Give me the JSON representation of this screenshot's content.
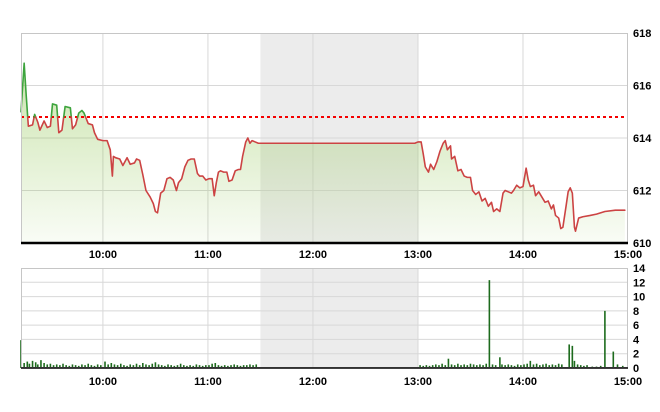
{
  "panel": {
    "background": "#ffffff",
    "description": "Intraday stock index price and volume chart"
  },
  "chart_data": [
    {
      "id": "price",
      "type": "line",
      "title": "",
      "x_axis": {
        "labels": [
          "10:00",
          "11:00",
          "12:00",
          "13:00",
          "14:00",
          "15:00"
        ],
        "hours": [
          10,
          11,
          12,
          13,
          14,
          15
        ],
        "range_hours": [
          9.22,
          15.0
        ],
        "grid": true
      },
      "y_axis": {
        "side": "right",
        "ticks": [
          618,
          616,
          614,
          612,
          610
        ],
        "range": [
          610,
          618
        ],
        "grid": true
      },
      "reference_value": 614.8,
      "session_break_hours": [
        11.5,
        13.0
      ],
      "colors": {
        "up_line": "#3da43d",
        "down_line": "#cc4343",
        "reference_line": "#f40000",
        "fill_base": "#8bc34a",
        "grid": "#d8d8d8",
        "band": "#ececec",
        "border": "#c6c6c6",
        "axis_line": "#000000"
      },
      "points": [
        [
          9.22,
          615.0
        ],
        [
          9.25,
          616.85
        ],
        [
          9.27,
          615.6
        ],
        [
          9.29,
          614.45
        ],
        [
          9.33,
          614.5
        ],
        [
          9.35,
          614.9
        ],
        [
          9.38,
          614.6
        ],
        [
          9.4,
          614.3
        ],
        [
          9.44,
          614.65
        ],
        [
          9.47,
          614.4
        ],
        [
          9.5,
          614.45
        ],
        [
          9.52,
          615.3
        ],
        [
          9.56,
          615.25
        ],
        [
          9.58,
          614.2
        ],
        [
          9.61,
          614.3
        ],
        [
          9.64,
          615.2
        ],
        [
          9.69,
          615.15
        ],
        [
          9.71,
          614.35
        ],
        [
          9.74,
          614.5
        ],
        [
          9.77,
          614.95
        ],
        [
          9.8,
          615.05
        ],
        [
          9.82,
          614.95
        ],
        [
          9.86,
          614.55
        ],
        [
          9.9,
          614.5
        ],
        [
          9.92,
          614.2
        ],
        [
          9.95,
          613.95
        ],
        [
          10.0,
          613.9
        ],
        [
          10.04,
          613.9
        ],
        [
          10.07,
          613.55
        ],
        [
          10.09,
          612.55
        ],
        [
          10.1,
          613.3
        ],
        [
          10.12,
          613.25
        ],
        [
          10.16,
          613.2
        ],
        [
          10.19,
          612.95
        ],
        [
          10.23,
          613.25
        ],
        [
          10.26,
          613.0
        ],
        [
          10.3,
          613.05
        ],
        [
          10.32,
          613.2
        ],
        [
          10.35,
          613.15
        ],
        [
          10.38,
          612.6
        ],
        [
          10.41,
          612.0
        ],
        [
          10.45,
          611.75
        ],
        [
          10.48,
          611.5
        ],
        [
          10.5,
          611.2
        ],
        [
          10.52,
          611.15
        ],
        [
          10.55,
          611.9
        ],
        [
          10.58,
          612.0
        ],
        [
          10.61,
          612.45
        ],
        [
          10.64,
          612.5
        ],
        [
          10.67,
          612.4
        ],
        [
          10.7,
          612.0
        ],
        [
          10.72,
          612.3
        ],
        [
          10.75,
          612.45
        ],
        [
          10.78,
          612.9
        ],
        [
          10.81,
          613.15
        ],
        [
          10.84,
          613.2
        ],
        [
          10.87,
          613.2
        ],
        [
          10.9,
          612.65
        ],
        [
          10.92,
          612.55
        ],
        [
          10.95,
          612.55
        ],
        [
          10.98,
          612.4
        ],
        [
          11.01,
          612.45
        ],
        [
          11.04,
          612.45
        ],
        [
          11.06,
          611.8
        ],
        [
          11.08,
          612.3
        ],
        [
          11.1,
          612.7
        ],
        [
          11.12,
          612.75
        ],
        [
          11.15,
          612.7
        ],
        [
          11.18,
          612.7
        ],
        [
          11.2,
          612.35
        ],
        [
          11.23,
          612.4
        ],
        [
          11.26,
          612.75
        ],
        [
          11.29,
          612.8
        ],
        [
          11.31,
          612.8
        ],
        [
          11.33,
          613.3
        ],
        [
          11.36,
          613.85
        ],
        [
          11.38,
          614.0
        ],
        [
          11.4,
          613.8
        ],
        [
          11.42,
          613.9
        ],
        [
          11.45,
          613.85
        ],
        [
          11.48,
          613.8
        ],
        [
          12.97,
          613.8
        ],
        [
          13.0,
          613.85
        ],
        [
          13.03,
          613.85
        ],
        [
          13.05,
          613.4
        ],
        [
          13.07,
          612.9
        ],
        [
          13.1,
          612.7
        ],
        [
          13.12,
          613.0
        ],
        [
          13.15,
          612.8
        ],
        [
          13.18,
          613.1
        ],
        [
          13.21,
          613.5
        ],
        [
          13.24,
          613.8
        ],
        [
          13.26,
          613.9
        ],
        [
          13.28,
          613.55
        ],
        [
          13.31,
          613.7
        ],
        [
          13.32,
          613.2
        ],
        [
          13.35,
          613.3
        ],
        [
          13.38,
          612.75
        ],
        [
          13.41,
          612.8
        ],
        [
          13.44,
          612.55
        ],
        [
          13.47,
          612.5
        ],
        [
          13.5,
          612.5
        ],
        [
          13.52,
          612.0
        ],
        [
          13.55,
          611.85
        ],
        [
          13.58,
          611.95
        ],
        [
          13.61,
          611.6
        ],
        [
          13.64,
          611.7
        ],
        [
          13.67,
          611.4
        ],
        [
          13.7,
          611.55
        ],
        [
          13.72,
          611.2
        ],
        [
          13.75,
          611.3
        ],
        [
          13.78,
          611.2
        ],
        [
          13.81,
          611.9
        ],
        [
          13.83,
          612.0
        ],
        [
          13.86,
          611.95
        ],
        [
          13.89,
          611.9
        ],
        [
          13.91,
          612.0
        ],
        [
          13.94,
          612.2
        ],
        [
          13.97,
          612.1
        ],
        [
          14.0,
          612.15
        ],
        [
          14.03,
          612.85
        ],
        [
          14.05,
          612.4
        ],
        [
          14.07,
          612.15
        ],
        [
          14.1,
          612.2
        ],
        [
          14.12,
          611.8
        ],
        [
          14.15,
          611.95
        ],
        [
          14.18,
          611.75
        ],
        [
          14.21,
          611.55
        ],
        [
          14.24,
          611.6
        ],
        [
          14.27,
          611.3
        ],
        [
          14.29,
          611.45
        ],
        [
          14.31,
          611.05
        ],
        [
          14.34,
          610.95
        ],
        [
          14.36,
          610.55
        ],
        [
          14.38,
          610.6
        ],
        [
          14.41,
          611.4
        ],
        [
          14.43,
          611.95
        ],
        [
          14.45,
          612.1
        ],
        [
          14.47,
          611.9
        ],
        [
          14.49,
          610.6
        ],
        [
          14.5,
          610.45
        ],
        [
          14.53,
          610.95
        ],
        [
          14.57,
          611.0
        ],
        [
          14.64,
          611.05
        ],
        [
          14.7,
          611.1
        ],
        [
          14.78,
          611.2
        ],
        [
          14.88,
          611.25
        ],
        [
          14.97,
          611.25
        ]
      ]
    },
    {
      "id": "volume",
      "type": "bar",
      "title": "",
      "x_axis": {
        "labels": [
          "10:00",
          "11:00",
          "12:00",
          "13:00",
          "14:00",
          "15:00"
        ],
        "hours": [
          10,
          11,
          12,
          13,
          14,
          15
        ],
        "range_hours": [
          9.22,
          15.0
        ],
        "grid": true
      },
      "y_axis": {
        "side": "right",
        "ticks": [
          14,
          12,
          10,
          8,
          6,
          4,
          2,
          0
        ],
        "range": [
          0,
          14
        ],
        "grid": true
      },
      "session_break_hours": [
        11.5,
        13.0
      ],
      "colors": {
        "bar": "#1d6b1d",
        "grid": "#d8d8d8",
        "band": "#ececec",
        "border": "#c6c6c6",
        "axis_line": "#000000"
      },
      "bars": [
        [
          9.22,
          3.9
        ],
        [
          9.25,
          0.7
        ],
        [
          9.28,
          0.9
        ],
        [
          9.3,
          0.6
        ],
        [
          9.33,
          1.0
        ],
        [
          9.36,
          0.8
        ],
        [
          9.38,
          0.5
        ],
        [
          9.41,
          1.1
        ],
        [
          9.44,
          0.7
        ],
        [
          9.47,
          0.5
        ],
        [
          9.5,
          0.6
        ],
        [
          9.53,
          0.4
        ],
        [
          9.56,
          0.5
        ],
        [
          9.59,
          0.4
        ],
        [
          9.62,
          0.6
        ],
        [
          9.65,
          0.4
        ],
        [
          9.68,
          0.3
        ],
        [
          9.71,
          0.5
        ],
        [
          9.74,
          0.4
        ],
        [
          9.77,
          0.3
        ],
        [
          9.8,
          0.5
        ],
        [
          9.83,
          0.4
        ],
        [
          9.86,
          0.6
        ],
        [
          9.89,
          0.4
        ],
        [
          9.92,
          0.3
        ],
        [
          9.95,
          0.5
        ],
        [
          9.98,
          0.4
        ],
        [
          10.02,
          0.9
        ],
        [
          10.05,
          0.5
        ],
        [
          10.08,
          0.7
        ],
        [
          10.11,
          0.5
        ],
        [
          10.14,
          0.4
        ],
        [
          10.17,
          0.6
        ],
        [
          10.2,
          0.4
        ],
        [
          10.23,
          0.3
        ],
        [
          10.26,
          0.5
        ],
        [
          10.29,
          0.4
        ],
        [
          10.32,
          0.6
        ],
        [
          10.35,
          0.4
        ],
        [
          10.38,
          0.7
        ],
        [
          10.41,
          0.5
        ],
        [
          10.44,
          0.4
        ],
        [
          10.47,
          0.6
        ],
        [
          10.5,
          0.8
        ],
        [
          10.53,
          0.5
        ],
        [
          10.56,
          0.4
        ],
        [
          10.59,
          0.3
        ],
        [
          10.62,
          0.5
        ],
        [
          10.65,
          0.4
        ],
        [
          10.68,
          0.3
        ],
        [
          10.71,
          0.4
        ],
        [
          10.74,
          0.6
        ],
        [
          10.77,
          0.4
        ],
        [
          10.8,
          0.3
        ],
        [
          10.83,
          0.4
        ],
        [
          10.86,
          0.3
        ],
        [
          10.89,
          0.5
        ],
        [
          10.92,
          0.4
        ],
        [
          10.95,
          0.3
        ],
        [
          10.98,
          0.4
        ],
        [
          11.01,
          0.4
        ],
        [
          11.04,
          0.6
        ],
        [
          11.07,
          0.7
        ],
        [
          11.1,
          0.4
        ],
        [
          11.13,
          0.3
        ],
        [
          11.16,
          0.4
        ],
        [
          11.19,
          0.3
        ],
        [
          11.22,
          0.4
        ],
        [
          11.25,
          0.5
        ],
        [
          11.28,
          0.4
        ],
        [
          11.31,
          0.3
        ],
        [
          11.34,
          0.4
        ],
        [
          11.37,
          0.4
        ],
        [
          11.4,
          0.5
        ],
        [
          11.43,
          0.4
        ],
        [
          11.46,
          0.5
        ],
        [
          13.02,
          0.4
        ],
        [
          13.05,
          0.3
        ],
        [
          13.08,
          0.4
        ],
        [
          13.11,
          0.3
        ],
        [
          13.14,
          0.4
        ],
        [
          13.17,
          0.5
        ],
        [
          13.2,
          0.4
        ],
        [
          13.23,
          0.6
        ],
        [
          13.26,
          0.4
        ],
        [
          13.29,
          1.3
        ],
        [
          13.32,
          0.5
        ],
        [
          13.35,
          0.4
        ],
        [
          13.38,
          0.6
        ],
        [
          13.41,
          0.4
        ],
        [
          13.44,
          0.5
        ],
        [
          13.47,
          0.4
        ],
        [
          13.5,
          0.6
        ],
        [
          13.53,
          0.5
        ],
        [
          13.56,
          0.4
        ],
        [
          13.59,
          0.5
        ],
        [
          13.62,
          0.4
        ],
        [
          13.65,
          0.6
        ],
        [
          13.68,
          12.3
        ],
        [
          13.71,
          0.5
        ],
        [
          13.74,
          0.4
        ],
        [
          13.78,
          1.5
        ],
        [
          13.8,
          0.5
        ],
        [
          13.83,
          0.4
        ],
        [
          13.86,
          0.5
        ],
        [
          13.89,
          0.4
        ],
        [
          13.92,
          0.3
        ],
        [
          13.95,
          0.5
        ],
        [
          13.98,
          0.4
        ],
        [
          14.01,
          0.5
        ],
        [
          14.04,
          0.6
        ],
        [
          14.07,
          1.0
        ],
        [
          14.1,
          0.5
        ],
        [
          14.13,
          0.6
        ],
        [
          14.16,
          0.4
        ],
        [
          14.19,
          0.5
        ],
        [
          14.22,
          0.6
        ],
        [
          14.25,
          0.4
        ],
        [
          14.28,
          0.5
        ],
        [
          14.31,
          0.4
        ],
        [
          14.34,
          0.6
        ],
        [
          14.37,
          0.5
        ],
        [
          14.44,
          3.3
        ],
        [
          14.47,
          3.1
        ],
        [
          14.49,
          1.0
        ],
        [
          14.52,
          0.5
        ],
        [
          14.55,
          0.4
        ],
        [
          14.58,
          0.3
        ],
        [
          14.61,
          0.4
        ],
        [
          14.66,
          0.2
        ],
        [
          14.7,
          0.2
        ],
        [
          14.74,
          0.3
        ],
        [
          14.78,
          8.0
        ],
        [
          14.86,
          2.3
        ],
        [
          14.9,
          0.5
        ],
        [
          14.95,
          0.3
        ]
      ]
    }
  ]
}
